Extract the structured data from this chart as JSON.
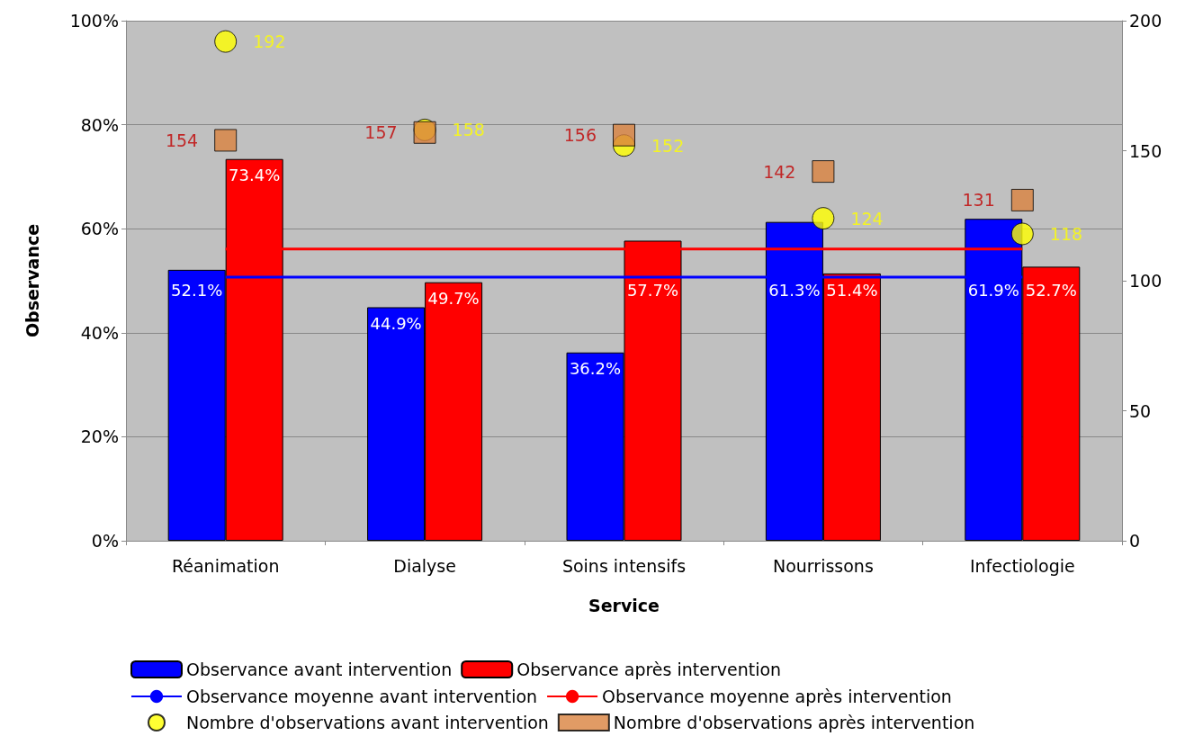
{
  "chart_data": {
    "type": "bar",
    "xlabel": "Service",
    "ylabel": "Observance",
    "categories": [
      "Réanimation",
      "Dialyse",
      "Soins intensifs",
      "Nourrissons",
      "Infectiologie"
    ],
    "series": [
      {
        "name": "Observance avant intervention",
        "color": "#0000ff",
        "values": [
          52.1,
          44.9,
          36.2,
          61.3,
          61.9
        ],
        "value_labels": [
          "52.1%",
          "44.9%",
          "36.2%",
          "61.3%",
          "61.9%"
        ]
      },
      {
        "name": "Observance après intervention",
        "color": "#ff0000",
        "values": [
          73.4,
          49.7,
          57.7,
          51.4,
          52.7
        ],
        "value_labels": [
          "73.4%",
          "49.7%",
          "57.7%",
          "51.4%",
          "52.7%"
        ]
      },
      {
        "name": "Observance moyenne avant intervention",
        "type": "line",
        "color": "#0000ff",
        "marker": "none",
        "values": [
          50.7,
          50.7,
          50.7,
          50.7,
          50.7
        ]
      },
      {
        "name": "Observance moyenne après intervention",
        "type": "line",
        "color": "#ff0000",
        "marker": "none",
        "values": [
          56.1,
          56.1,
          56.1,
          56.1,
          56.1
        ]
      },
      {
        "name": "Nombre d'observations avant intervention",
        "type": "scatter",
        "axis": "y2",
        "color": "#ffff00",
        "marker": "circle",
        "values": [
          192,
          158,
          152,
          124,
          118
        ],
        "value_labels": [
          "192",
          "158",
          "152",
          "124",
          "118"
        ]
      },
      {
        "name": "Nombre d'observations après intervention",
        "type": "scatter",
        "axis": "y2",
        "color": "#d9823f",
        "marker": "square",
        "values": [
          154,
          157,
          156,
          142,
          131
        ],
        "value_labels": [
          "154",
          "157",
          "156",
          "142",
          "131"
        ]
      }
    ],
    "ylim": [
      0,
      100
    ],
    "yticks": [
      {
        "value": 0,
        "label": "0%"
      },
      {
        "value": 20,
        "label": "20%"
      },
      {
        "value": 40,
        "label": "40%"
      },
      {
        "value": 60,
        "label": "60%"
      },
      {
        "value": 80,
        "label": "80%"
      },
      {
        "value": 100,
        "label": "100%"
      }
    ],
    "y2lim": [
      0,
      200
    ],
    "y2ticks": [
      0,
      50,
      100,
      150,
      200
    ],
    "grid": "y",
    "legend": "bottom"
  }
}
